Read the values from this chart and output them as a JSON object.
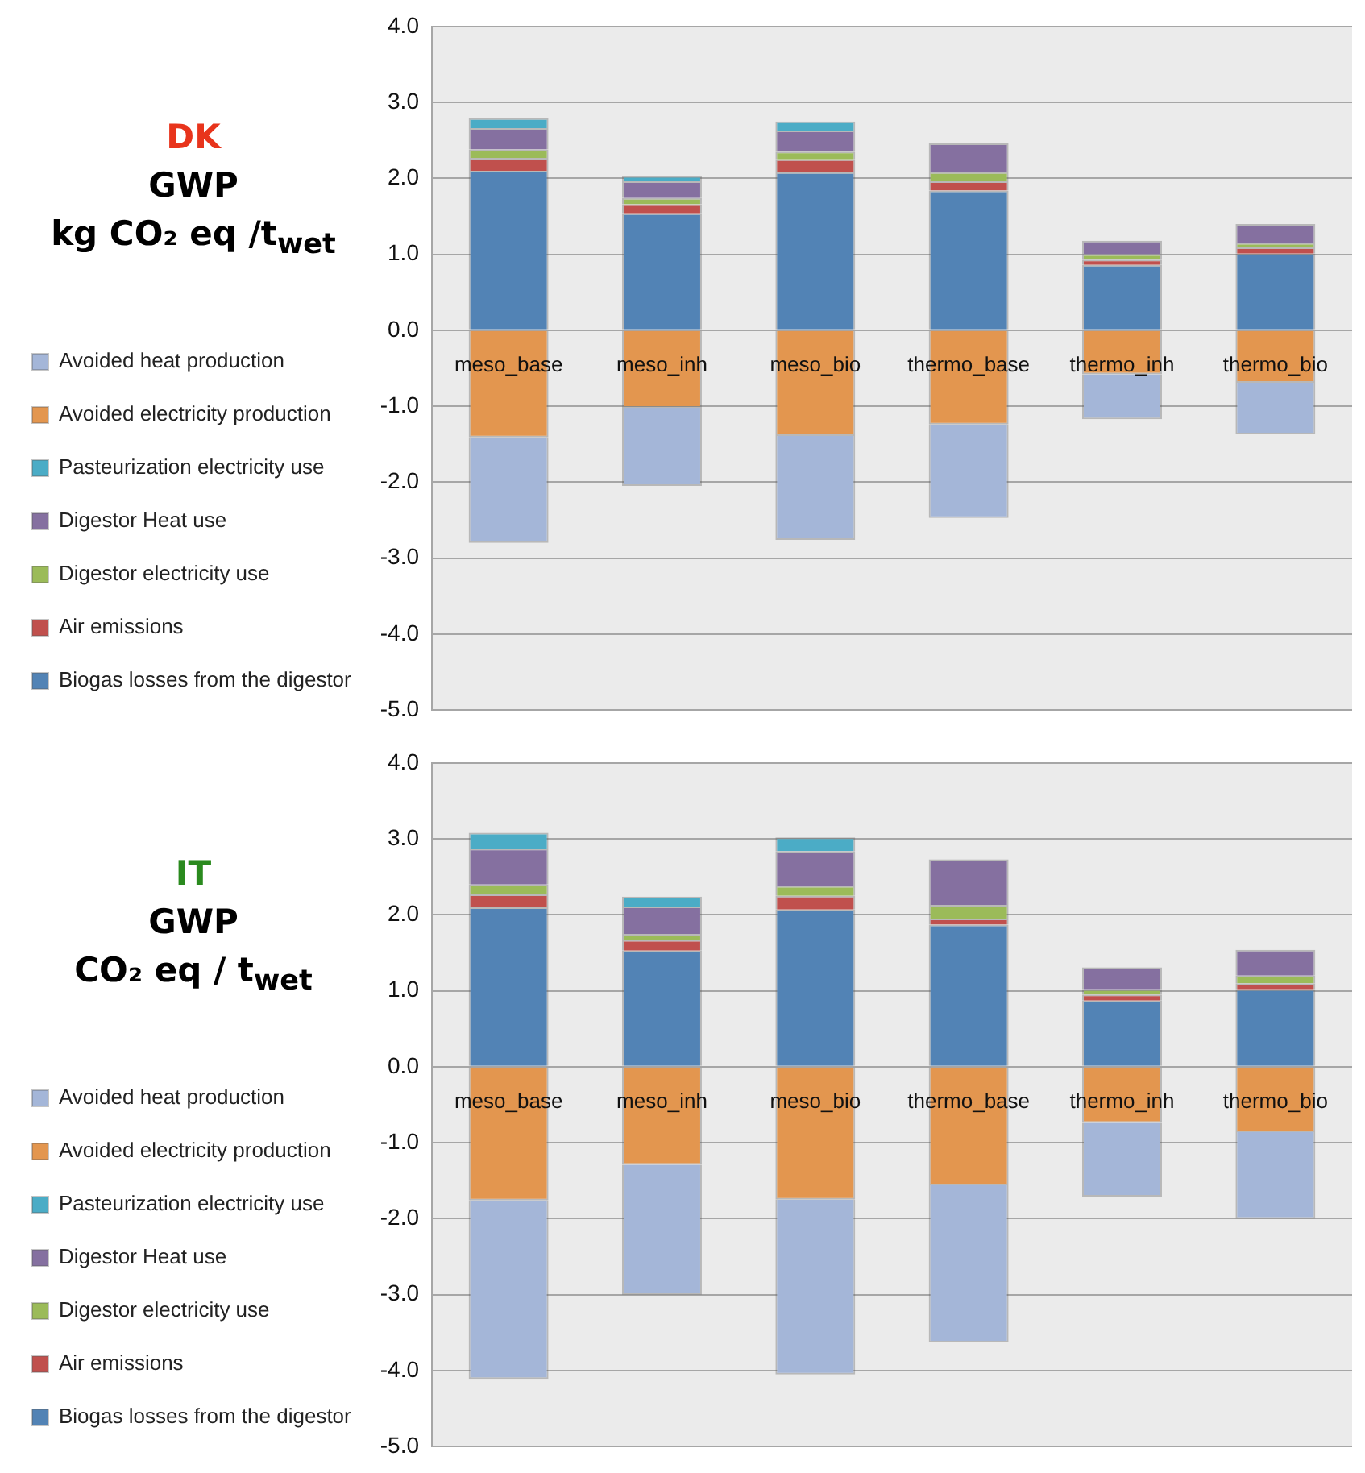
{
  "chart_data": [
    {
      "type": "bar",
      "stacked": true,
      "title": "DK",
      "subtitle": "GWP",
      "ylabel": "kg CO₂ eq /t$_{wet}$",
      "categories": [
        "meso_base",
        "meso_inh",
        "meso_bio",
        "thermo_base",
        "thermo_inh",
        "thermo_bio"
      ],
      "series": [
        {
          "name": "Biogas losses from the digestor",
          "color": "#5283b5",
          "values": [
            2.1,
            1.54,
            2.08,
            1.84,
            0.86,
            1.01
          ]
        },
        {
          "name": "Air emissions",
          "color": "#c0504d",
          "values": [
            0.17,
            0.12,
            0.17,
            0.12,
            0.07,
            0.08
          ]
        },
        {
          "name": "Digestor electricity use",
          "color": "#9bbb59",
          "values": [
            0.11,
            0.08,
            0.1,
            0.12,
            0.07,
            0.06
          ]
        },
        {
          "name": "Digestor Heat use",
          "color": "#8570a0",
          "values": [
            0.28,
            0.22,
            0.28,
            0.38,
            0.18,
            0.25
          ]
        },
        {
          "name": "Pasteurization electricity use",
          "color": "#4bacc6",
          "values": [
            0.13,
            0.07,
            0.12,
            0,
            0,
            0
          ]
        },
        {
          "name": "Avoided electricity production",
          "color": "#e3964f",
          "values": [
            -1.41,
            -1.02,
            -1.39,
            -1.24,
            -0.58,
            -0.69
          ]
        },
        {
          "name": "Avoided heat production",
          "color": "#a4b6d8",
          "values": [
            -1.39,
            -1.03,
            -1.37,
            -1.23,
            -0.59,
            -0.68
          ]
        }
      ],
      "ylim": [
        -5,
        4
      ],
      "yticks": [
        {
          "value": -5,
          "label": "-5.0"
        },
        {
          "value": -4,
          "label": "-4.0"
        },
        {
          "value": -3,
          "label": "-3.0"
        },
        {
          "value": -2,
          "label": "-2.0"
        },
        {
          "value": -1,
          "label": "-1.0"
        },
        {
          "value": 0,
          "label": "0.0"
        },
        {
          "value": 1,
          "label": "1.0"
        },
        {
          "value": 2,
          "label": "2.0"
        },
        {
          "value": 3,
          "label": "3.0"
        },
        {
          "value": 4,
          "label": "4.0"
        }
      ],
      "grid": "y",
      "legend": "left"
    },
    {
      "type": "bar",
      "stacked": true,
      "title": "IT",
      "subtitle": "GWP",
      "ylabel": "CO₂ eq / t$_{wet}$",
      "categories": [
        "meso_base",
        "meso_inh",
        "meso_bio",
        "thermo_base",
        "thermo_inh",
        "thermo_bio"
      ],
      "series": [
        {
          "name": "Biogas losses from the digestor",
          "color": "#5283b5",
          "values": [
            2.1,
            1.53,
            2.07,
            1.87,
            0.87,
            1.02
          ]
        },
        {
          "name": "Air emissions",
          "color": "#c0504d",
          "values": [
            0.17,
            0.14,
            0.18,
            0.08,
            0.08,
            0.08
          ]
        },
        {
          "name": "Digestor electricity use",
          "color": "#9bbb59",
          "values": [
            0.13,
            0.08,
            0.13,
            0.18,
            0.07,
            0.1
          ]
        },
        {
          "name": "Digestor Heat use",
          "color": "#8570a0",
          "values": [
            0.47,
            0.36,
            0.46,
            0.6,
            0.29,
            0.34
          ]
        },
        {
          "name": "Pasteurization electricity use",
          "color": "#4bacc6",
          "values": [
            0.21,
            0.13,
            0.18,
            0,
            0,
            0
          ]
        },
        {
          "name": "Avoided electricity production",
          "color": "#e3964f",
          "values": [
            -1.76,
            -1.29,
            -1.75,
            -1.56,
            -0.74,
            -0.86
          ]
        },
        {
          "name": "Avoided heat production",
          "color": "#a4b6d8",
          "values": [
            -2.35,
            -1.71,
            -2.3,
            -2.07,
            -0.97,
            -1.14
          ]
        }
      ],
      "ylim": [
        -5,
        4
      ],
      "yticks": [
        {
          "value": -5,
          "label": "-5.0"
        },
        {
          "value": -4,
          "label": "-4.0"
        },
        {
          "value": -3,
          "label": "-3.0"
        },
        {
          "value": -2,
          "label": "-2.0"
        },
        {
          "value": -1,
          "label": "-1.0"
        },
        {
          "value": 0,
          "label": "0.0"
        },
        {
          "value": 1,
          "label": "1.0"
        },
        {
          "value": 2,
          "label": "2.0"
        },
        {
          "value": 3,
          "label": "3.0"
        },
        {
          "value": 4,
          "label": "4.0"
        }
      ],
      "grid": "y",
      "legend": "left"
    }
  ]
}
